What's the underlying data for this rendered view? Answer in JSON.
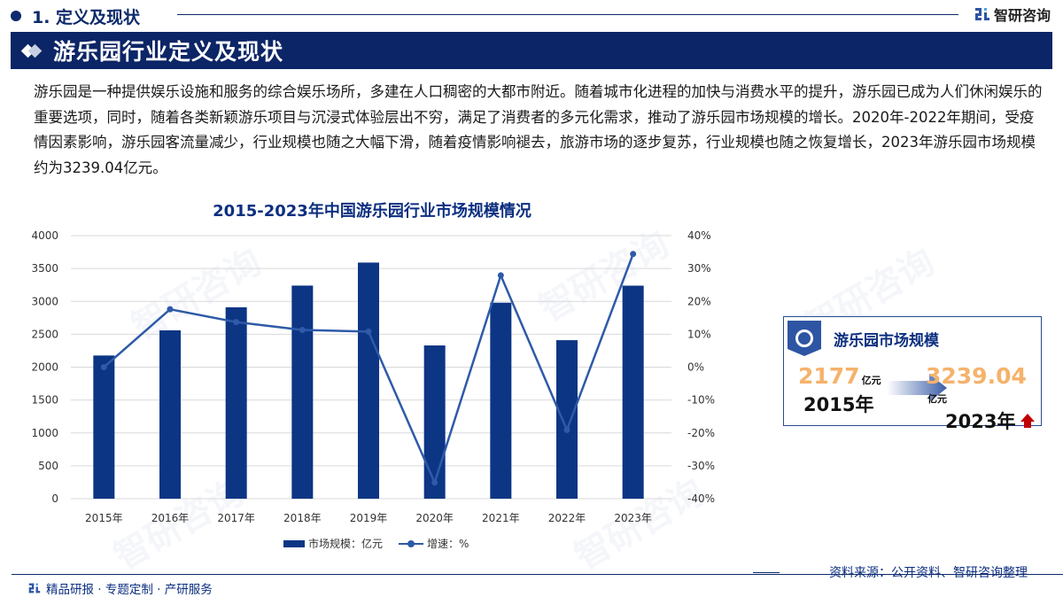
{
  "header": {
    "section_title": "1. 定义及现状",
    "brand_name": "智研咨询",
    "band_title": "游乐园行业定义及现状"
  },
  "body": {
    "paragraph": "游乐园是一种提供娱乐设施和服务的综合娱乐场所，多建在人口稠密的大都市附近。随着城市化进程的加快与消费水平的提升，游乐园已成为人们休闲娱乐的重要选项，同时，随着各类新颖游乐项目与沉浸式体验层出不穷，满足了消费者的多元化需求，推动了游乐园市场规模的增长。2020年-2022年期间，受疫情因素影响，游乐园客流量减少，行业规模也随之大幅下滑，随着疫情影响褪去，旅游市场的逐步复苏，行业规模也随之恢复增长，2023年游乐园市场规模约为3239.04亿元。"
  },
  "chart_data": {
    "type": "bar",
    "title": "2015-2023年中国游乐园行业市场规模情况",
    "categories": [
      "2015年",
      "2016年",
      "2017年",
      "2018年",
      "2019年",
      "2020年",
      "2021年",
      "2022年",
      "2023年"
    ],
    "series": [
      {
        "name": "市场规模：亿元",
        "type": "bar",
        "axis": "left",
        "color": "#0c3584",
        "values": [
          2177,
          2560,
          2910,
          3240,
          3590,
          2330,
          2980,
          2410,
          3239.04
        ]
      },
      {
        "name": "增速：%",
        "type": "line",
        "axis": "right",
        "color": "#2e5aa8",
        "values": [
          0,
          17.6,
          13.7,
          11.3,
          10.8,
          -35.1,
          27.9,
          -19.1,
          34.4
        ]
      }
    ],
    "y_left": {
      "ticks": [
        "4000",
        "3500",
        "3000",
        "2500",
        "2000",
        "1500",
        "1000",
        "500",
        "0"
      ],
      "ylim": [
        0,
        4000
      ]
    },
    "y_right": {
      "ticks": [
        "40%",
        "30%",
        "20%",
        "10%",
        "0%",
        "-10%",
        "-20%",
        "-30%",
        "-40%"
      ],
      "ylim": [
        -40,
        40
      ]
    },
    "xlabel": "",
    "ylabel": "",
    "grid": true,
    "legend_position": "bottom"
  },
  "legend": {
    "bar_label": "市场规模：亿元",
    "line_label": "增速：%"
  },
  "kpi": {
    "title": "游乐园市场规模",
    "start_value": "2177",
    "start_unit": "亿元",
    "start_year": "2015年",
    "end_value": "3239.04",
    "end_unit": "亿元",
    "end_year": "2023年"
  },
  "footer": {
    "source": "资料来源：公开资料、智研咨询整理",
    "slogan": "精品研报 · 专题定制 · 产研服务"
  }
}
